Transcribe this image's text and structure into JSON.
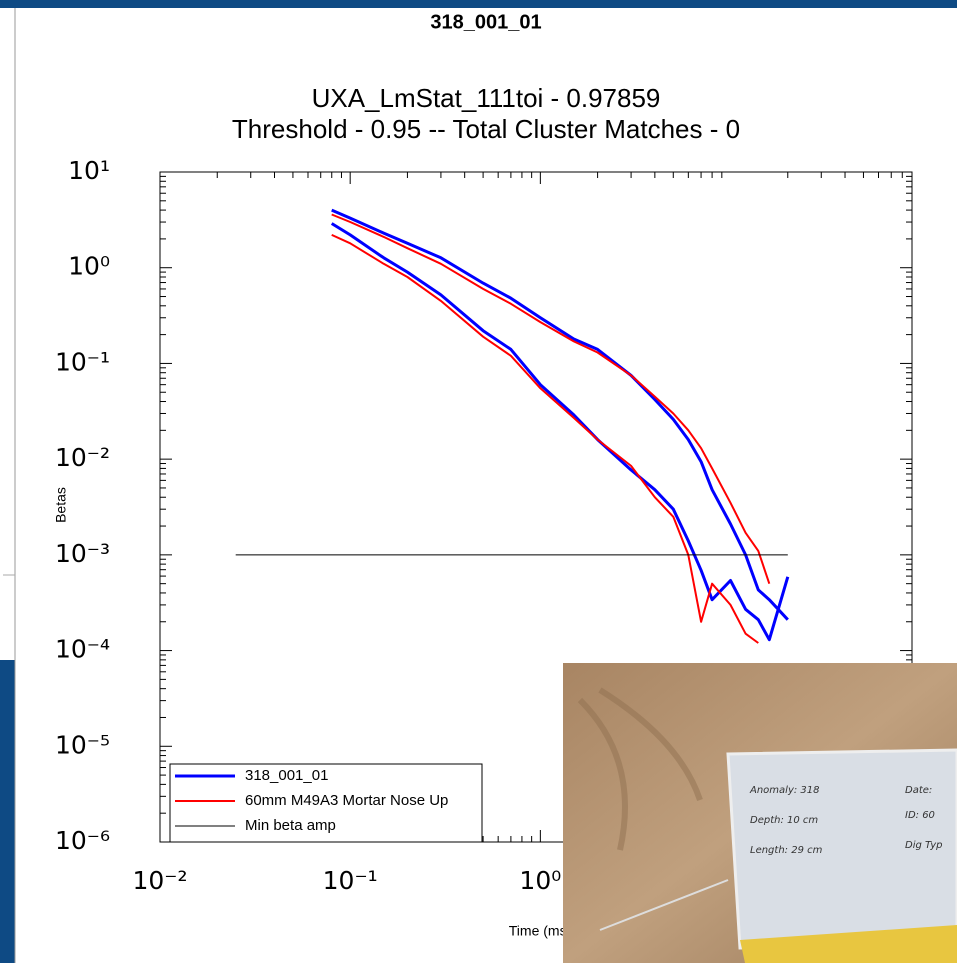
{
  "header": {
    "title": "318_001_01"
  },
  "chart_data": {
    "type": "line",
    "title": "UXA_LmStat_111toi - 0.97859",
    "subtitle": "Threshold - 0.95 -- Total Cluster Matches - 0",
    "xlabel": "Time (ms)",
    "ylabel": "Betas",
    "xscale": "log",
    "yscale": "log",
    "xlim": [
      0.01,
      90
    ],
    "ylim": [
      1e-06,
      10
    ],
    "xticks": [
      {
        "value": 0.01,
        "label": "10⁻²"
      },
      {
        "value": 0.1,
        "label": "10⁻¹"
      },
      {
        "value": 1,
        "label": "10⁰"
      }
    ],
    "yticks": [
      {
        "value": 10,
        "label": "10¹"
      },
      {
        "value": 1,
        "label": "10⁰"
      },
      {
        "value": 0.1,
        "label": "10⁻¹"
      },
      {
        "value": 0.01,
        "label": "10⁻²"
      },
      {
        "value": 0.001,
        "label": "10⁻³"
      },
      {
        "value": 0.0001,
        "label": "10⁻⁴"
      },
      {
        "value": 1e-05,
        "label": "10⁻⁵"
      },
      {
        "value": 1e-06,
        "label": "10⁻⁶"
      }
    ],
    "legend": "lower left",
    "x": [
      0.08,
      0.1,
      0.15,
      0.2,
      0.3,
      0.5,
      0.7,
      1,
      1.5,
      2,
      3,
      4,
      5,
      6,
      7,
      8,
      10,
      12,
      14,
      16,
      20
    ],
    "series": [
      {
        "name": "318_001_01",
        "color": "#0000ff",
        "width": 3,
        "curves": [
          {
            "values": [
              4.0,
              3.3,
              2.3,
              1.8,
              1.27,
              0.69,
              0.48,
              0.3,
              0.18,
              0.14,
              0.075,
              0.042,
              0.026,
              0.016,
              0.0094,
              0.0048,
              0.0021,
              0.001,
              0.00043,
              0.00034,
              0.00021
            ]
          },
          {
            "values": [
              2.9,
              2.2,
              1.27,
              0.9,
              0.52,
              0.22,
              0.14,
              0.06,
              0.029,
              0.016,
              0.0077,
              0.0048,
              0.003,
              0.0014,
              0.00069,
              0.00034,
              0.00054,
              0.00027,
              0.00021,
              0.00013,
              0.00059
            ]
          }
        ]
      },
      {
        "name": "60mm M49A3 Mortar Nose Up",
        "color": "#ff0000",
        "width": 2,
        "curves": [
          {
            "values": [
              3.6,
              3.0,
              2.1,
              1.6,
              1.1,
              0.6,
              0.42,
              0.27,
              0.17,
              0.13,
              0.075,
              0.045,
              0.03,
              0.02,
              0.013,
              0.008,
              0.0035,
              0.0017,
              0.0011,
              0.0005,
              null
            ]
          },
          {
            "values": [
              2.2,
              1.8,
              1.1,
              0.8,
              0.45,
              0.19,
              0.12,
              0.055,
              0.027,
              0.016,
              0.0085,
              0.004,
              0.0025,
              0.001,
              0.0002,
              0.0005,
              0.0003,
              0.00015,
              0.00012,
              null,
              null
            ]
          }
        ]
      },
      {
        "name": "Min beta amp",
        "color": "#000000",
        "width": 1,
        "curves": [
          {
            "x": [
              0.025,
              20
            ],
            "values": [
              0.001,
              0.001
            ]
          }
        ]
      }
    ]
  },
  "photo": {
    "labels": [
      "Anomaly: 318",
      "Depth: 10 cm",
      "Length: 29 cm",
      "Date:",
      "ID: 60",
      "Dig Typ"
    ]
  }
}
